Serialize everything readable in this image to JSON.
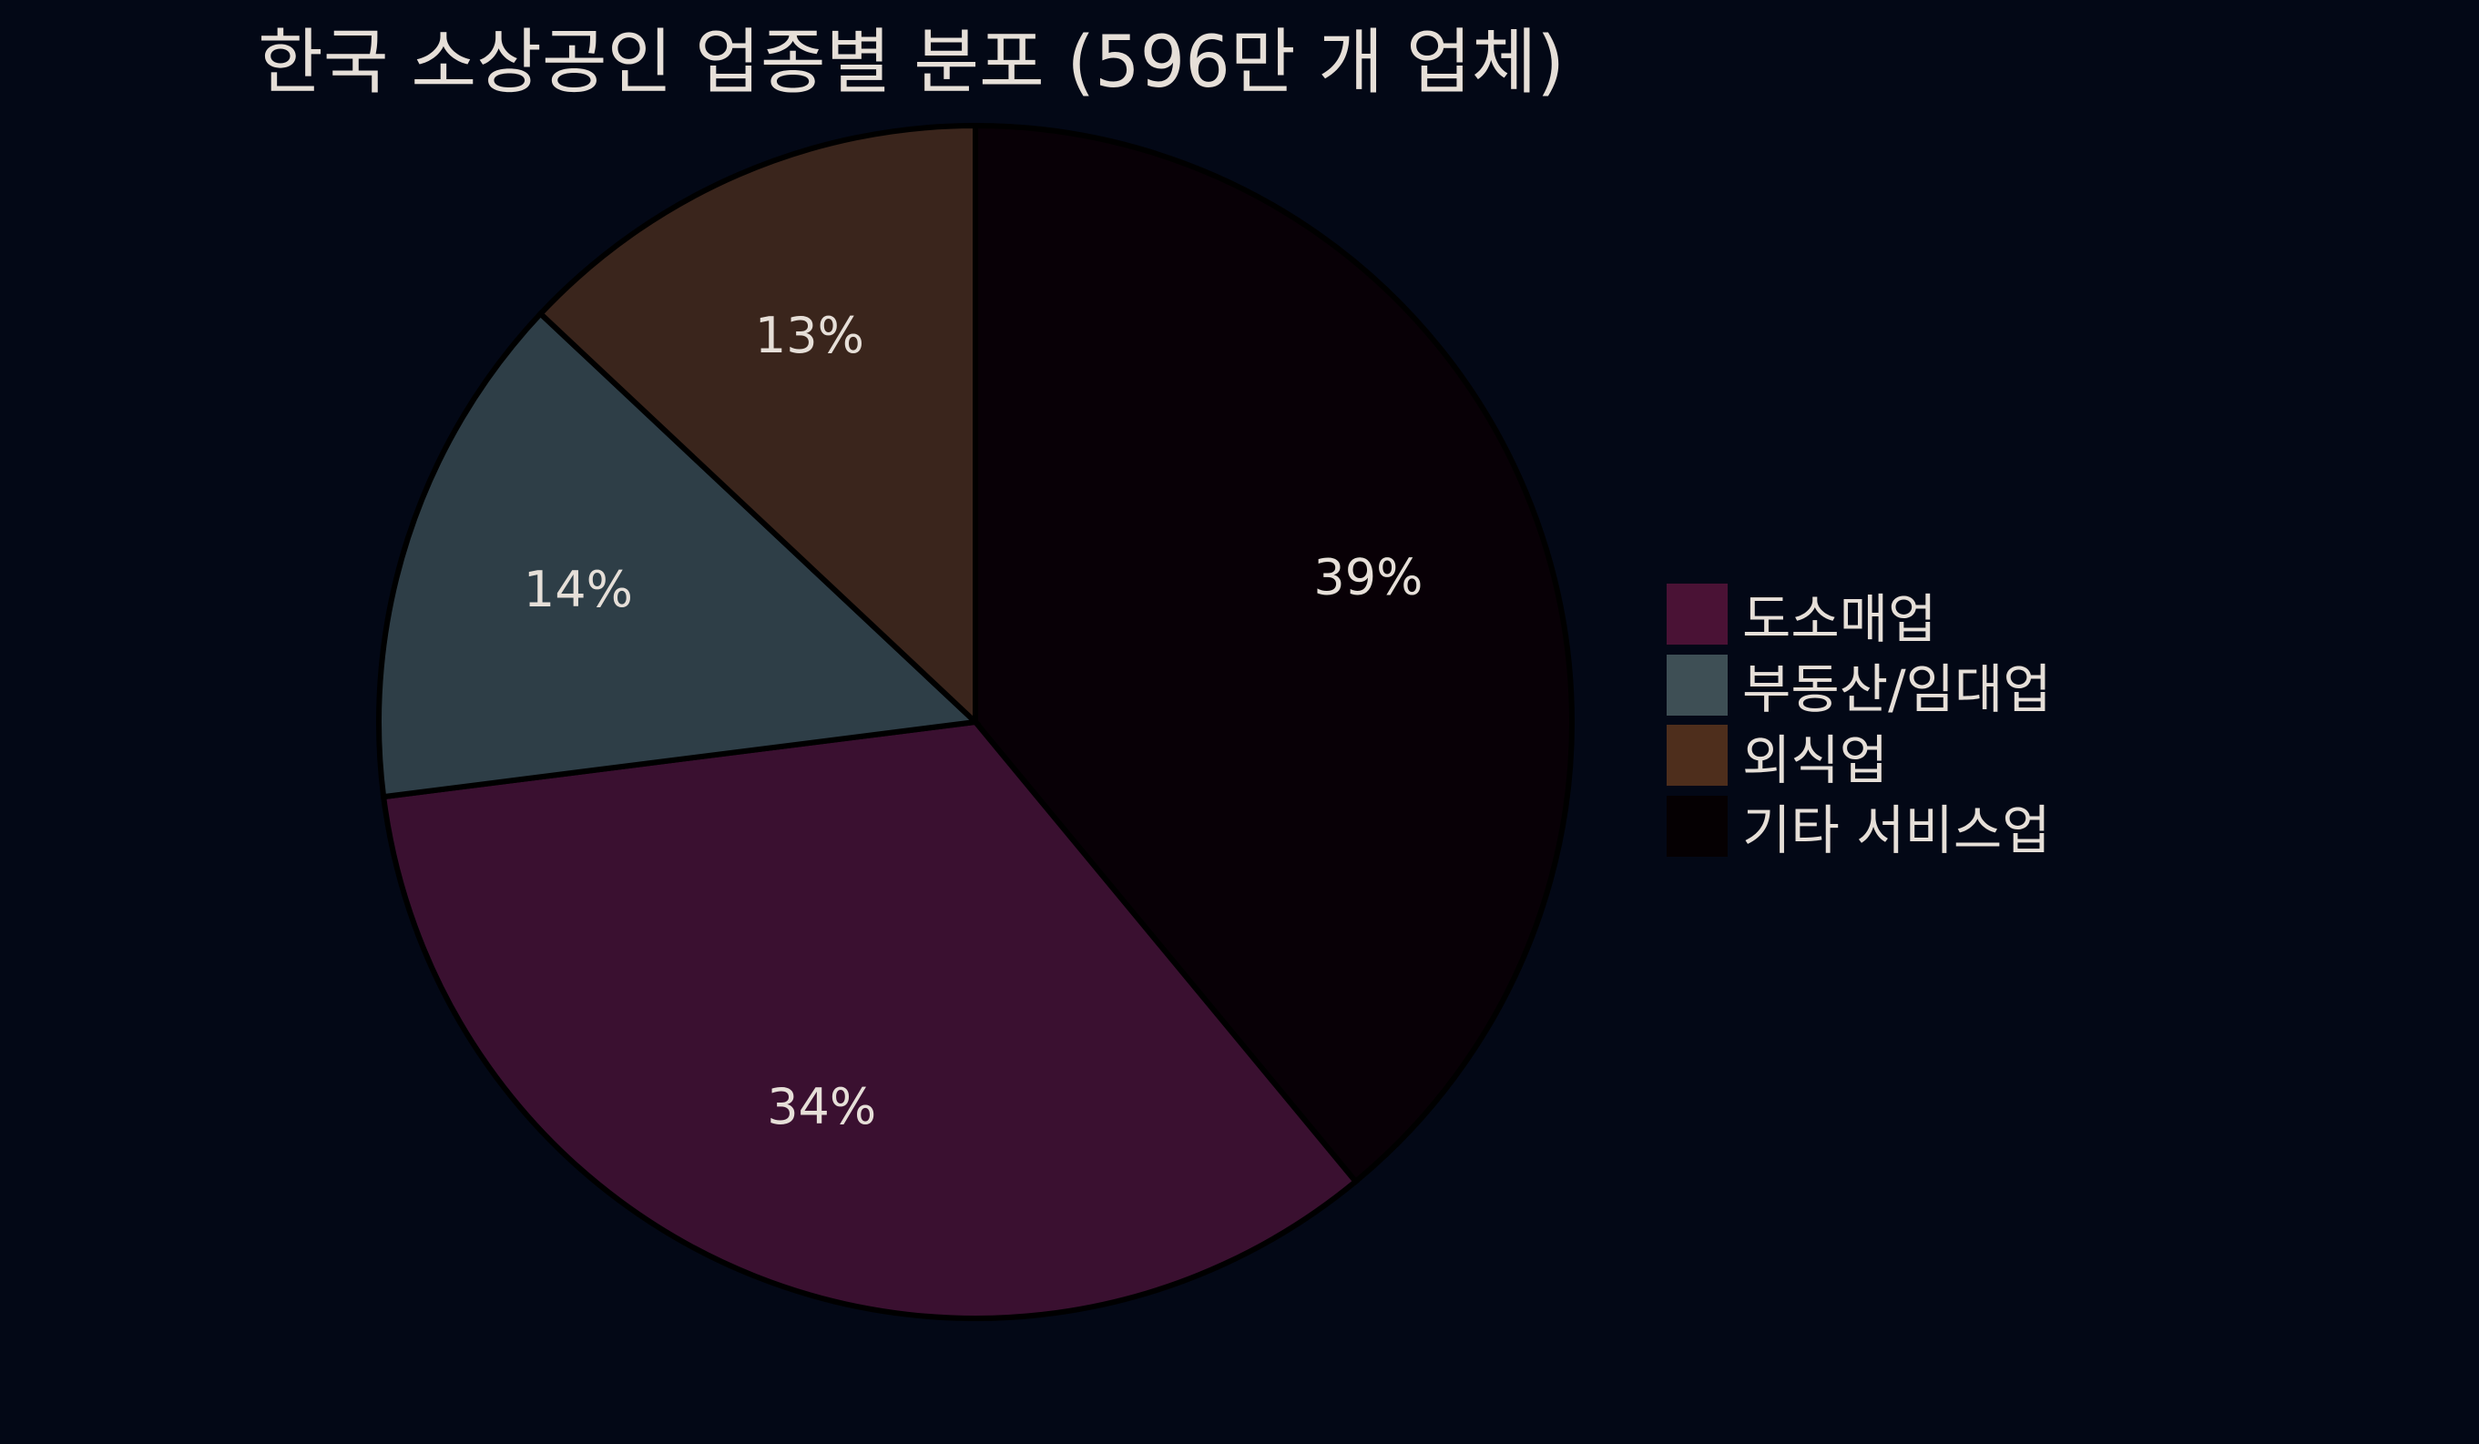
{
  "chart_data": {
    "type": "pie",
    "title": "한국 소상공인 업종별 분포 (596만 개 업체)",
    "slices": [
      {
        "label": "기타 서비스업",
        "value": 39,
        "display": "39%",
        "color": "#080006"
      },
      {
        "label": "도소매업",
        "value": 34,
        "display": "34%",
        "color": "#3a1030"
      },
      {
        "label": "부동산/임대업",
        "value": 14,
        "display": "14%",
        "color": "#2e3e47"
      },
      {
        "label": "외식업",
        "value": 13,
        "display": "13%",
        "color": "#3a251c"
      }
    ],
    "legend": {
      "placement": "right",
      "items": [
        {
          "label": "도소매업",
          "color": "#4a1235"
        },
        {
          "label": "부동산/임대업",
          "color": "#3e4f55"
        },
        {
          "label": "외식업",
          "color": "#4e2e1c"
        },
        {
          "label": "기타 서비스업",
          "color": "#050002"
        }
      ]
    },
    "start": "top",
    "direction": "clockwise",
    "background": "#030816"
  }
}
